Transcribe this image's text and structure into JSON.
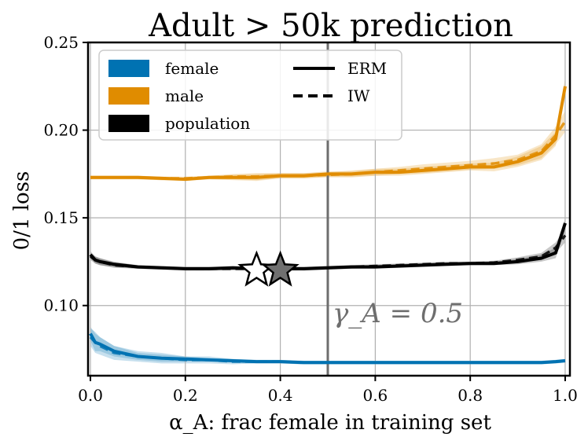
{
  "chart_data": {
    "type": "line",
    "title": "Adult > 50k prediction",
    "xlabel": "α_A: frac female in training set",
    "ylabel": "0/1 loss",
    "xlim": [
      -0.005,
      1.01
    ],
    "ylim": [
      0.06,
      0.25
    ],
    "xticks": [
      0.0,
      0.2,
      0.4,
      0.6,
      0.8,
      1.0
    ],
    "xtick_labels": [
      "0.0",
      "0.2",
      "0.4",
      "0.6",
      "0.8",
      "1.0"
    ],
    "yticks": [
      0.1,
      0.15,
      0.2,
      0.25
    ],
    "ytick_labels": [
      "0.10",
      "0.15",
      "0.20",
      "0.25"
    ],
    "grid": true,
    "legend_position": "top-left",
    "legend_groups": [
      "female",
      "male",
      "population"
    ],
    "legend_styles": [
      "ERM",
      "IW"
    ],
    "x": [
      0.0,
      0.01,
      0.02,
      0.05,
      0.1,
      0.15,
      0.2,
      0.25,
      0.3,
      0.35,
      0.4,
      0.45,
      0.5,
      0.55,
      0.6,
      0.65,
      0.7,
      0.75,
      0.8,
      0.85,
      0.9,
      0.95,
      0.98,
      1.0
    ],
    "series": [
      {
        "name": "female",
        "style": "ERM",
        "color": "#0072b2",
        "values": [
          0.084,
          0.079,
          0.078,
          0.074,
          0.071,
          0.07,
          0.0695,
          0.069,
          0.0685,
          0.068,
          0.068,
          0.0675,
          0.0675,
          0.0675,
          0.0675,
          0.0675,
          0.0675,
          0.0675,
          0.0675,
          0.0675,
          0.0675,
          0.0675,
          0.068,
          0.0685
        ],
        "band": [
          0.004,
          0.005,
          0.004,
          0.003,
          0.002,
          0.002,
          0.0015,
          0.001,
          0.001,
          0.001,
          0.001,
          0.001,
          0.001,
          0.001,
          0.001,
          0.001,
          0.001,
          0.001,
          0.001,
          0.001,
          0.001,
          0.001,
          0.001,
          0.001
        ]
      },
      {
        "name": "female",
        "style": "IW",
        "color": "#0072b2",
        "values": [
          0.082,
          0.079,
          0.077,
          0.073,
          0.071,
          0.07,
          0.069,
          0.069,
          0.068,
          0.068,
          0.068,
          0.0675,
          0.0675,
          0.0675,
          0.0675,
          0.0675,
          0.0675,
          0.0675,
          0.0675,
          0.0675,
          0.0675,
          0.0675,
          0.068,
          0.0685
        ],
        "band": [
          0.005,
          0.006,
          0.005,
          0.004,
          0.003,
          0.003,
          0.002,
          0.002,
          0.0015,
          0.001,
          0.001,
          0.001,
          0.001,
          0.001,
          0.001,
          0.001,
          0.001,
          0.001,
          0.001,
          0.001,
          0.001,
          0.001,
          0.001,
          0.001
        ]
      },
      {
        "name": "male",
        "style": "ERM",
        "color": "#e08c00",
        "values": [
          0.173,
          0.173,
          0.173,
          0.173,
          0.173,
          0.1725,
          0.172,
          0.173,
          0.173,
          0.173,
          0.174,
          0.174,
          0.175,
          0.175,
          0.176,
          0.176,
          0.177,
          0.178,
          0.179,
          0.179,
          0.182,
          0.187,
          0.195,
          0.225
        ],
        "band": [
          0.001,
          0.001,
          0.001,
          0.001,
          0.001,
          0.001,
          0.001,
          0.001,
          0.0015,
          0.002,
          0.0015,
          0.0015,
          0.0015,
          0.0015,
          0.002,
          0.002,
          0.002,
          0.002,
          0.002,
          0.0025,
          0.003,
          0.004,
          0.004,
          0.005
        ]
      },
      {
        "name": "male",
        "style": "IW",
        "color": "#e08c00",
        "values": [
          0.173,
          0.173,
          0.173,
          0.173,
          0.173,
          0.1725,
          0.1725,
          0.173,
          0.1735,
          0.1735,
          0.174,
          0.174,
          0.1745,
          0.175,
          0.176,
          0.177,
          0.178,
          0.179,
          0.18,
          0.181,
          0.183,
          0.188,
          0.197,
          0.205
        ],
        "band": [
          0.001,
          0.001,
          0.001,
          0.001,
          0.001,
          0.001,
          0.001,
          0.001,
          0.0015,
          0.002,
          0.0015,
          0.0015,
          0.0015,
          0.002,
          0.002,
          0.002,
          0.0025,
          0.0025,
          0.0025,
          0.003,
          0.003,
          0.004,
          0.005,
          0.006
        ]
      },
      {
        "name": "population",
        "style": "ERM",
        "color": "#000000",
        "values": [
          0.129,
          0.126,
          0.125,
          0.1235,
          0.122,
          0.1215,
          0.121,
          0.121,
          0.1215,
          0.121,
          0.121,
          0.121,
          0.1215,
          0.122,
          0.122,
          0.1225,
          0.123,
          0.1235,
          0.124,
          0.124,
          0.125,
          0.127,
          0.13,
          0.147
        ],
        "band": [
          0.002,
          0.002,
          0.002,
          0.0015,
          0.001,
          0.001,
          0.001,
          0.001,
          0.001,
          0.001,
          0.001,
          0.001,
          0.001,
          0.001,
          0.001,
          0.001,
          0.001,
          0.001,
          0.001,
          0.001,
          0.0015,
          0.002,
          0.003,
          0.003
        ]
      },
      {
        "name": "population",
        "style": "IW",
        "color": "#000000",
        "values": [
          0.128,
          0.126,
          0.125,
          0.123,
          0.122,
          0.1215,
          0.121,
          0.121,
          0.121,
          0.121,
          0.121,
          0.121,
          0.1215,
          0.122,
          0.1225,
          0.123,
          0.1235,
          0.124,
          0.124,
          0.1245,
          0.126,
          0.128,
          0.133,
          0.14
        ],
        "band": [
          0.002,
          0.002,
          0.002,
          0.0015,
          0.001,
          0.001,
          0.001,
          0.001,
          0.001,
          0.001,
          0.001,
          0.001,
          0.001,
          0.001,
          0.001,
          0.001,
          0.001,
          0.001,
          0.001,
          0.001,
          0.0015,
          0.002,
          0.003,
          0.004
        ]
      }
    ],
    "vline": {
      "x": 0.5,
      "label": "γ_A = 0.5",
      "color": "#6e6e6e"
    },
    "markers": [
      {
        "name": "star-white",
        "x": 0.35,
        "y": 0.1205,
        "fill": "#ffffff"
      },
      {
        "name": "star-gray",
        "x": 0.4,
        "y": 0.1205,
        "fill": "#707070"
      }
    ]
  }
}
